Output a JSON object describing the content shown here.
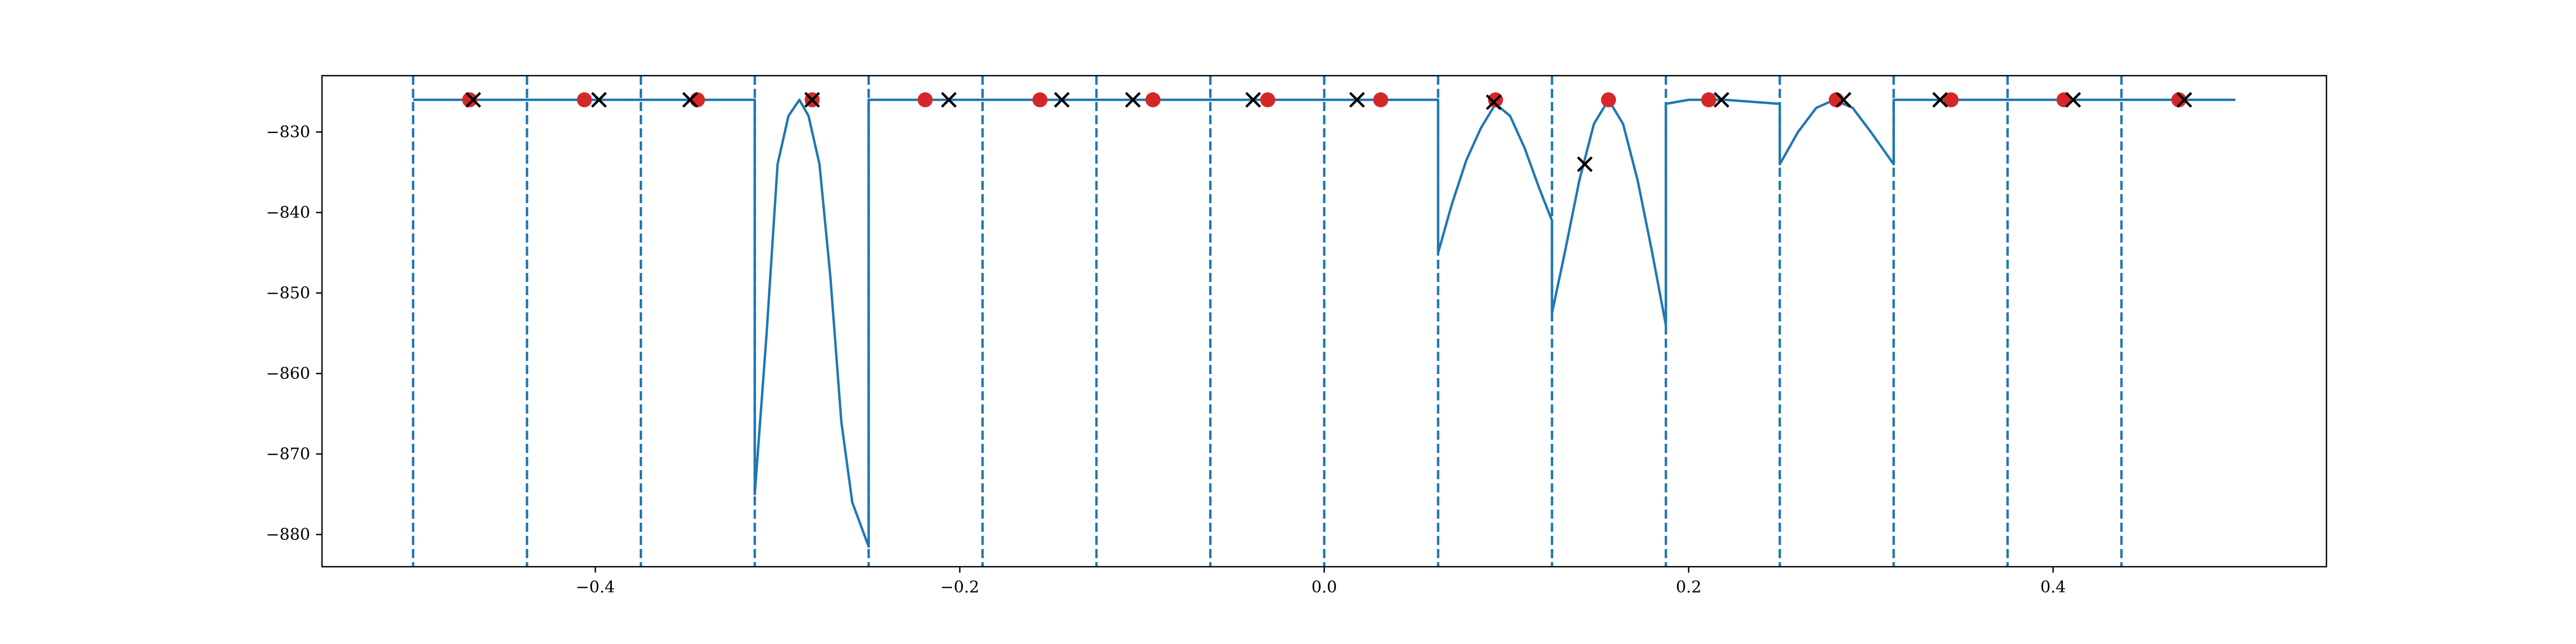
{
  "chart_data": {
    "type": "line",
    "title": "",
    "xlabel": "",
    "ylabel": "",
    "xlim": [
      -0.55,
      0.55
    ],
    "ylim": [
      -884,
      -823
    ],
    "grid": false,
    "colors": {
      "line": "#1f77b4",
      "divider": "#1f77b4",
      "dot": "#d62728",
      "cross": "#000000",
      "axes": "#000000"
    },
    "x_ticks": [
      {
        "value": -0.4,
        "label": "−0.4"
      },
      {
        "value": -0.2,
        "label": "−0.2"
      },
      {
        "value": 0.0,
        "label": "0.0"
      },
      {
        "value": 0.2,
        "label": "0.2"
      },
      {
        "value": 0.4,
        "label": "0.4"
      }
    ],
    "y_ticks": [
      {
        "value": -830,
        "label": "−830"
      },
      {
        "value": -840,
        "label": "−840"
      },
      {
        "value": -850,
        "label": "−850"
      },
      {
        "value": -860,
        "label": "−860"
      },
      {
        "value": -870,
        "label": "−870"
      },
      {
        "value": -880,
        "label": "−880"
      }
    ],
    "dividers": [
      -0.5,
      -0.4375,
      -0.375,
      -0.3125,
      -0.25,
      -0.1875,
      -0.125,
      -0.0625,
      0.0,
      0.0625,
      0.125,
      0.1875,
      0.25,
      0.3125,
      0.375,
      0.4375
    ],
    "series": [
      {
        "kind": "line",
        "x": [
          -0.5,
          -0.3125,
          -0.3125,
          -0.306,
          -0.3,
          -0.294,
          -0.288,
          -0.283,
          -0.277,
          -0.271,
          -0.265,
          -0.259,
          -0.25,
          -0.25,
          0.0625,
          0.0625,
          0.07,
          0.078,
          0.086,
          0.094,
          0.102,
          0.11,
          0.118,
          0.125,
          0.125,
          0.132,
          0.14,
          0.148,
          0.156,
          0.164,
          0.172,
          0.18,
          0.1875,
          0.1875,
          0.2,
          0.22,
          0.25,
          0.25,
          0.26,
          0.27,
          0.28,
          0.29,
          0.3,
          0.3125,
          0.3125,
          0.5
        ],
        "y": [
          -826,
          -826,
          -875,
          -855,
          -834,
          -828,
          -826,
          -828,
          -834,
          -848,
          -866,
          -876,
          -881.5,
          -826,
          -826,
          -845,
          -839,
          -833.5,
          -829.5,
          -826.5,
          -828,
          -832,
          -837,
          -841,
          -852.5,
          -845,
          -836,
          -829,
          -826,
          -829,
          -836,
          -845,
          -854,
          -826.5,
          -826,
          -826,
          -826.5,
          -834,
          -830,
          -827,
          -826,
          -827,
          -830,
          -834,
          -826,
          -826
        ]
      },
      {
        "kind": "scatter",
        "marker": "o",
        "x": [
          -0.469,
          -0.406,
          -0.344,
          -0.281,
          -0.219,
          -0.156,
          -0.094,
          -0.031,
          0.031,
          0.094,
          0.156,
          0.211,
          0.281,
          0.344,
          0.406,
          0.469
        ],
        "y": [
          -826,
          -826,
          -826,
          -826,
          -826,
          -826,
          -826,
          -826,
          -826,
          -826,
          -826,
          -826,
          -826,
          -826,
          -826,
          -826
        ]
      },
      {
        "kind": "scatter",
        "marker": "x",
        "x": [
          -0.467,
          -0.398,
          -0.348,
          -0.281,
          -0.206,
          -0.144,
          -0.105,
          -0.039,
          0.018,
          0.093,
          0.143,
          0.218,
          0.285,
          0.338,
          0.411,
          0.472
        ],
        "y": [
          -826,
          -826,
          -826,
          -826,
          -826,
          -826,
          -826,
          -826,
          -826,
          -826.3,
          -834,
          -826,
          -826,
          -826,
          -826,
          -826
        ]
      }
    ]
  }
}
